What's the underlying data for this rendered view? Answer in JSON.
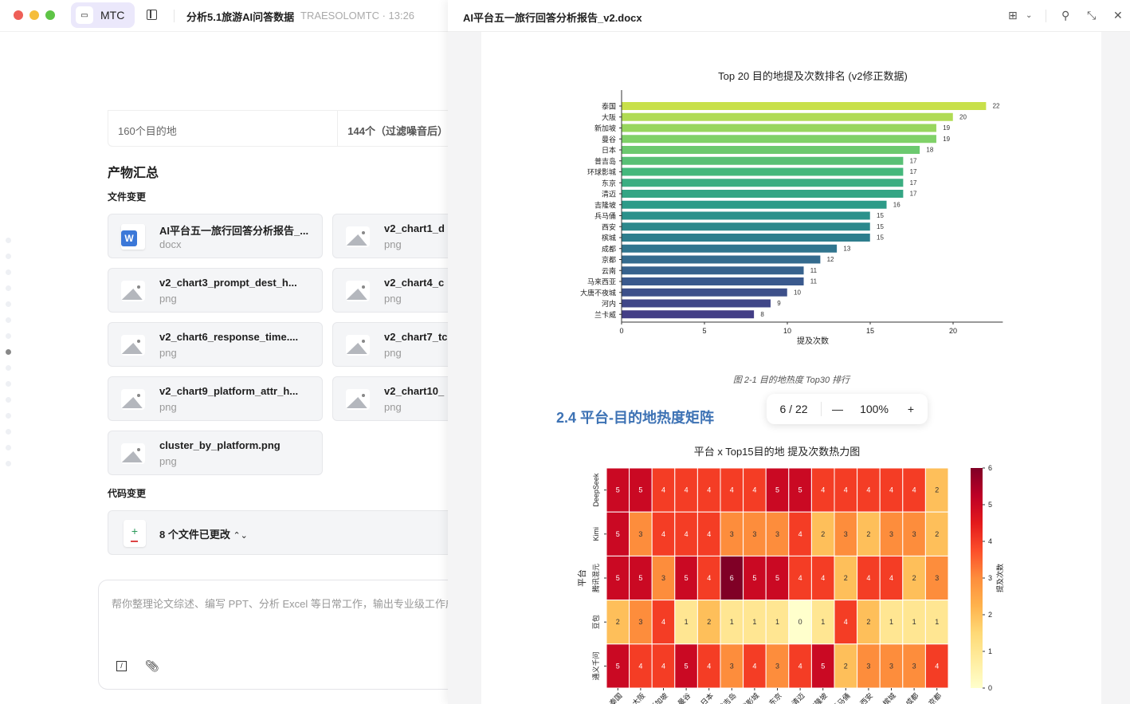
{
  "window": {
    "app_label": "MTC",
    "title": "分析5.1旅游AI问答数据",
    "subtitle": "TRAESOLOMTC · 13:26"
  },
  "left": {
    "table_cells": [
      "160个目的地",
      "144个（过滤噪音后）"
    ],
    "summary_heading": "产物汇总",
    "file_changes_label": "文件变更",
    "files": [
      {
        "name": "AI平台五一旅行回答分析报告_...",
        "type": "docx",
        "icon": "word-icon"
      },
      {
        "name": "v2_chart1_d",
        "type": "png",
        "icon": "image-icon"
      },
      {
        "name": "v2_chart3_prompt_dest_h...",
        "type": "png",
        "icon": "image-icon"
      },
      {
        "name": "v2_chart4_c",
        "type": "png",
        "icon": "image-icon"
      },
      {
        "name": "v2_chart6_response_time....",
        "type": "png",
        "icon": "image-icon"
      },
      {
        "name": "v2_chart7_tc",
        "type": "png",
        "icon": "image-icon"
      },
      {
        "name": "v2_chart9_platform_attr_h...",
        "type": "png",
        "icon": "image-icon"
      },
      {
        "name": "v2_chart10_",
        "type": "png",
        "icon": "image-icon"
      },
      {
        "name": "cluster_by_platform.png",
        "type": "png",
        "icon": "image-icon"
      }
    ],
    "code_changes_label": "代码变更",
    "code_changes_summary": "8 个文件已更改",
    "input_placeholder": "帮你整理论文综述、编写 PPT、分析 Excel 等日常工作，输出专业级工作成果"
  },
  "right": {
    "doc_title": "AI平台五一旅行回答分析报告_v2.docx",
    "figure_caption": "图 2-1  目的地热度 Top30 排行",
    "section_heading": "2.4 平台-目的地热度矩阵",
    "pager": {
      "page": "6 / 22",
      "zoom": "100%",
      "minus": "—",
      "plus": "+"
    }
  },
  "chart_data": [
    {
      "type": "bar",
      "orientation": "horizontal",
      "title": "Top 20 目的地提及次数排名 (v2修正数据)",
      "xlabel": "提及次数",
      "ylabel": "",
      "xlim": [
        0,
        23
      ],
      "xticks": [
        0,
        5,
        10,
        15,
        20
      ],
      "categories": [
        "泰国",
        "大阪",
        "新加坡",
        "曼谷",
        "日本",
        "普吉岛",
        "环球影城",
        "东京",
        "清迈",
        "吉隆坡",
        "兵马俑",
        "西安",
        "槟城",
        "成都",
        "京都",
        "云南",
        "马来西亚",
        "大唐不夜城",
        "河内",
        "兰卡威"
      ],
      "values": [
        22,
        20,
        19,
        19,
        18,
        17,
        17,
        17,
        17,
        16,
        15,
        15,
        15,
        13,
        12,
        11,
        11,
        10,
        9,
        8
      ],
      "colormap": "viridis",
      "grid": false
    },
    {
      "type": "heatmap",
      "title": "平台 x Top15目的地 提及次数热力图",
      "ylabel": "平台",
      "colorbar_label": "提及次数",
      "colormap": "YlOrRd",
      "vmin": 0,
      "vmax": 6,
      "colorbar_ticks": [
        0,
        1,
        2,
        3,
        4,
        5,
        6
      ],
      "rows": [
        "DeepSeek",
        "Kimi",
        "腾讯混元",
        "豆包",
        "通义千问"
      ],
      "columns": [
        "泰国",
        "大阪",
        "新加坡",
        "曼谷",
        "日本",
        "普吉岛",
        "环球影城",
        "东京",
        "清迈",
        "吉隆坡",
        "兵马俑",
        "西安",
        "槟城",
        "成都",
        "京都"
      ],
      "values": [
        [
          5,
          5,
          4,
          4,
          4,
          4,
          4,
          5,
          5,
          4,
          4,
          4,
          4,
          4,
          2
        ],
        [
          5,
          3,
          4,
          4,
          4,
          3,
          3,
          3,
          4,
          2,
          3,
          2,
          3,
          3,
          2
        ],
        [
          5,
          5,
          3,
          5,
          4,
          6,
          5,
          5,
          4,
          4,
          2,
          4,
          4,
          2,
          3
        ],
        [
          2,
          3,
          4,
          1,
          2,
          1,
          1,
          1,
          0,
          1,
          4,
          2,
          1,
          1,
          1
        ],
        [
          5,
          4,
          4,
          5,
          4,
          3,
          4,
          3,
          4,
          5,
          2,
          3,
          3,
          3,
          4
        ]
      ]
    }
  ]
}
